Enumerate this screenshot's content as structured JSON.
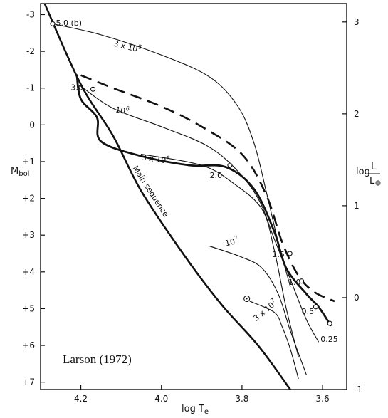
{
  "chart_data": {
    "type": "line",
    "title": "",
    "credit": "Larson (1972)",
    "xlabel": "log T",
    "xlabel_sub": "e",
    "ylabel": "M",
    "ylabel_sub": "bol",
    "ylabel_right_num": "L",
    "ylabel_right_prefix": "log",
    "ylabel_right_den": "L",
    "xlim": [
      4.3,
      3.54
    ],
    "ylim": [
      -3.3,
      7.2
    ],
    "y2lim": [
      -1,
      3.2
    ],
    "x_ticks": [
      {
        "v": 4.2,
        "label": "4.2"
      },
      {
        "v": 4.0,
        "label": "4.0"
      },
      {
        "v": 3.8,
        "label": "3.8"
      },
      {
        "v": 3.6,
        "label": "3.6"
      }
    ],
    "y_ticks": [
      {
        "v": -3,
        "label": "-3"
      },
      {
        "v": -2,
        "label": "-2"
      },
      {
        "v": -1,
        "label": "-1"
      },
      {
        "v": 0,
        "label": "0"
      },
      {
        "v": 1,
        "label": "+1"
      },
      {
        "v": 2,
        "label": "+2"
      },
      {
        "v": 3,
        "label": "+3"
      },
      {
        "v": 4,
        "label": "+4"
      },
      {
        "v": 5,
        "label": "+5"
      },
      {
        "v": 6,
        "label": "+6"
      },
      {
        "v": 7,
        "label": "+7"
      }
    ],
    "y2_ticks": [
      {
        "v": 3,
        "label": "3"
      },
      {
        "v": 2,
        "label": "2"
      },
      {
        "v": 1,
        "label": "1"
      },
      {
        "v": 0,
        "label": "0"
      },
      {
        "v": -1,
        "label": "-1"
      }
    ],
    "main_sequence": {
      "label": "Main sequence",
      "points": [
        [
          4.29,
          -3.3
        ],
        [
          4.2,
          -1.1
        ],
        [
          4.12,
          0.3
        ],
        [
          4.05,
          1.8
        ],
        [
          3.94,
          3.6
        ],
        [
          3.85,
          4.9
        ],
        [
          3.76,
          6.0
        ],
        [
          3.68,
          7.2
        ]
      ]
    },
    "tracks": [
      {
        "mass_label": "5.0 (b)",
        "style": "thin",
        "points": [
          [
            4.27,
            -2.75
          ],
          [
            4.15,
            -2.45
          ],
          [
            4.0,
            -1.9
          ],
          [
            3.88,
            -1.3
          ],
          [
            3.81,
            -0.5
          ],
          [
            3.77,
            0.5
          ],
          [
            3.74,
            1.8
          ],
          [
            3.71,
            3.2
          ],
          [
            3.68,
            4.4
          ]
        ]
      },
      {
        "mass_label": "",
        "style": "dashed",
        "points": [
          [
            4.2,
            -1.35
          ],
          [
            4.12,
            -1.0
          ],
          [
            4.0,
            -0.5
          ],
          [
            3.9,
            0.05
          ],
          [
            3.8,
            0.8
          ],
          [
            3.74,
            1.9
          ],
          [
            3.7,
            3.2
          ],
          [
            3.66,
            4.1
          ],
          [
            3.62,
            4.55
          ],
          [
            3.57,
            4.8
          ]
        ]
      },
      {
        "mass_label": "3.0",
        "style": "thin",
        "points": [
          [
            4.2,
            -1.05
          ],
          [
            4.12,
            -0.45
          ],
          [
            4.0,
            0.05
          ],
          [
            3.89,
            0.55
          ],
          [
            3.82,
            1.15
          ],
          [
            3.76,
            2.0
          ],
          [
            3.72,
            3.1
          ],
          [
            3.68,
            4.2
          ],
          [
            3.64,
            5.3
          ],
          [
            3.61,
            5.9
          ]
        ]
      },
      {
        "mass_label": "2.0",
        "style": "thick",
        "points": [
          [
            4.21,
            -1.35
          ],
          [
            4.2,
            -0.7
          ],
          [
            4.16,
            -0.2
          ],
          [
            4.15,
            0.45
          ],
          [
            4.05,
            0.85
          ],
          [
            3.93,
            1.1
          ],
          [
            3.84,
            1.15
          ],
          [
            3.77,
            1.75
          ],
          [
            3.72,
            2.9
          ],
          [
            3.69,
            3.9
          ],
          [
            3.64,
            4.6
          ],
          [
            3.61,
            4.95
          ],
          [
            3.58,
            5.45
          ]
        ]
      },
      {
        "mass_label": "1.5",
        "style": "thin",
        "points": [
          [
            4.05,
            0.8
          ],
          [
            3.9,
            1.1
          ],
          [
            3.82,
            1.6
          ],
          [
            3.75,
            2.3
          ],
          [
            3.72,
            3.4
          ],
          [
            3.69,
            5.0
          ],
          [
            3.66,
            6.3
          ]
        ]
      },
      {
        "mass_label": "1.0",
        "style": "thin",
        "points": [
          [
            3.88,
            3.3
          ],
          [
            3.8,
            3.6
          ],
          [
            3.75,
            3.9
          ],
          [
            3.71,
            4.6
          ],
          [
            3.68,
            5.6
          ],
          [
            3.64,
            6.8
          ]
        ]
      },
      {
        "mass_label": "0.5",
        "style": "thin",
        "points": [
          [
            3.78,
            4.8
          ],
          [
            3.72,
            5.1
          ],
          [
            3.7,
            5.5
          ],
          [
            3.68,
            6.1
          ],
          [
            3.66,
            6.9
          ]
        ]
      }
    ],
    "markers": [
      {
        "x": 4.27,
        "y": -2.75,
        "kind": "circle"
      },
      {
        "x": 4.17,
        "y": -0.97,
        "kind": "circle"
      },
      {
        "x": 3.83,
        "y": 1.1,
        "kind": "circle"
      },
      {
        "x": 3.681,
        "y": 3.5,
        "kind": "circle"
      },
      {
        "x": 3.652,
        "y": 4.25,
        "kind": "circle"
      },
      {
        "x": 3.617,
        "y": 4.95,
        "kind": "circle"
      },
      {
        "x": 3.582,
        "y": 5.4,
        "kind": "circle"
      },
      {
        "x": 3.788,
        "y": 4.73,
        "kind": "dotted-circle"
      }
    ],
    "annotations": [
      {
        "text": "5.0 (b)",
        "x": 4.262,
        "y": -2.7,
        "rot": 0
      },
      {
        "text": "3 x 10",
        "sup": "5",
        "x": 4.12,
        "y": -2.15,
        "rot": 14
      },
      {
        "text": "3.0",
        "x": 4.225,
        "y": -0.95,
        "rot": 0
      },
      {
        "text": "10",
        "sup": "6",
        "x": 4.115,
        "y": -0.35,
        "rot": 10
      },
      {
        "text": "3 x 10",
        "sup": "6",
        "x": 4.05,
        "y": 0.95,
        "rot": 8
      },
      {
        "text": "2.0",
        "x": 3.88,
        "y": 1.45,
        "rot": 0
      },
      {
        "text": "10",
        "sup": "7",
        "x": 3.84,
        "y": 3.3,
        "rot": -14
      },
      {
        "text": "1.5",
        "x": 3.725,
        "y": 3.6,
        "rot": 0
      },
      {
        "text": "1.0",
        "x": 3.685,
        "y": 4.35,
        "rot": 0
      },
      {
        "text": "0.5",
        "x": 3.652,
        "y": 5.15,
        "rot": 0
      },
      {
        "text": "3 x 10",
        "sup": "7",
        "x": 3.765,
        "y": 5.35,
        "rot": -40
      },
      {
        "text": "0.25",
        "x": 3.605,
        "y": 5.9,
        "rot": 0
      }
    ]
  }
}
